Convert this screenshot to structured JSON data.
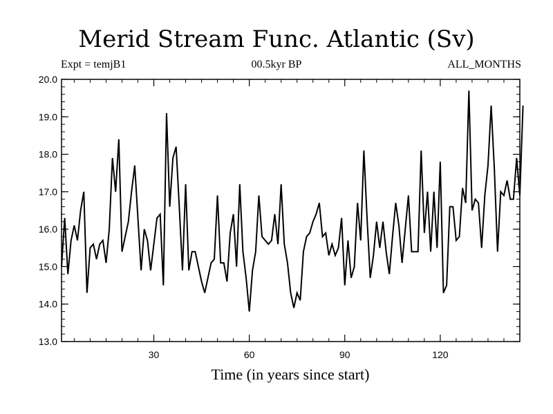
{
  "chart_data": {
    "type": "line",
    "title": "Merid Stream Func. Atlantic (Sv)",
    "subtitle_left": "Expt = temjB1",
    "subtitle_center": "00.5kyr BP",
    "subtitle_right": "ALL_MONTHS",
    "xlabel": "Time (in years since start)",
    "ylabel": "",
    "xlim": [
      1,
      145
    ],
    "ylim": [
      13.0,
      20.0
    ],
    "xticks": [
      30,
      60,
      90,
      120
    ],
    "xtick_labels": [
      "30",
      "60",
      "90",
      "120"
    ],
    "yticks": [
      13.0,
      14.0,
      15.0,
      16.0,
      17.0,
      18.0,
      19.0,
      20.0
    ],
    "ytick_labels": [
      "13.0",
      "14.0",
      "15.0",
      "16.0",
      "17.0",
      "18.0",
      "19.0",
      "20.0"
    ],
    "series": [
      {
        "name": "Merid Stream Func. Atlantic",
        "values": [
          15.0,
          16.3,
          14.8,
          15.7,
          16.1,
          15.7,
          16.5,
          17.0,
          14.3,
          15.5,
          15.6,
          15.2,
          15.6,
          15.7,
          15.1,
          16.0,
          17.9,
          17.0,
          18.4,
          15.4,
          15.8,
          16.2,
          17.0,
          17.7,
          16.3,
          14.9,
          16.0,
          15.7,
          14.9,
          15.6,
          16.3,
          16.4,
          14.5,
          19.1,
          16.6,
          17.9,
          18.2,
          16.6,
          14.9,
          17.2,
          14.9,
          15.4,
          15.4,
          15.0,
          14.6,
          14.3,
          14.7,
          15.1,
          15.2,
          16.9,
          15.1,
          15.1,
          14.6,
          15.9,
          16.4,
          15.0,
          17.2,
          15.4,
          14.7,
          13.8,
          14.9,
          15.4,
          16.9,
          15.8,
          15.7,
          15.6,
          15.7,
          16.4,
          15.6,
          17.2,
          15.6,
          15.1,
          14.3,
          13.9,
          14.3,
          14.1,
          15.4,
          15.8,
          15.9,
          16.2,
          16.4,
          16.7,
          15.8,
          15.9,
          15.3,
          15.6,
          15.3,
          15.5,
          16.3,
          14.5,
          15.7,
          14.7,
          15.0,
          16.7,
          15.7,
          18.1,
          16.3,
          14.7,
          15.3,
          16.2,
          15.5,
          16.2,
          15.4,
          14.8,
          15.8,
          16.7,
          16.1,
          15.1,
          16.0,
          16.9,
          15.4,
          15.4,
          15.4,
          18.1,
          15.9,
          17.0,
          15.4,
          17.0,
          15.5,
          17.8,
          14.3,
          14.5,
          16.6,
          16.6,
          15.7,
          15.8,
          17.1,
          16.7,
          19.7,
          16.5,
          16.8,
          16.7,
          15.5,
          16.9,
          17.7,
          19.3,
          17.6,
          15.4,
          17.0,
          16.9,
          17.3,
          16.8,
          16.8,
          17.9,
          16.9,
          19.3
        ]
      }
    ]
  }
}
